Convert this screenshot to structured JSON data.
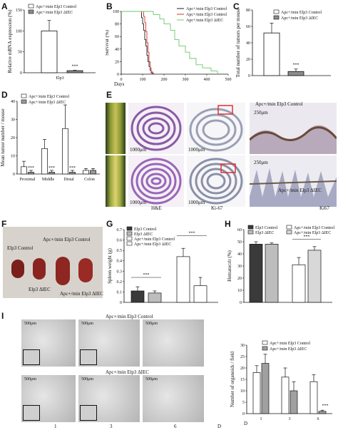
{
  "panels": {
    "A": "A",
    "B": "B",
    "C": "C",
    "D": "D",
    "E": "E",
    "F": "F",
    "G": "G",
    "H": "H",
    "I": "I"
  },
  "chart_data": [
    {
      "panel": "A",
      "type": "bar",
      "categories": [
        "Elp3"
      ],
      "series": [
        {
          "name": "Apc+/min Elp3 Control",
          "values": [
            100
          ],
          "error": [
            25
          ]
        },
        {
          "name": "Apc+/min Elp3 ΔIEC",
          "values": [
            5
          ],
          "error": [
            1
          ]
        }
      ],
      "ylabel": "Relative mRNA expression (%)",
      "ylim": [
        0,
        150
      ],
      "yticks": [
        "0",
        "50",
        "100",
        "150"
      ],
      "xtick": "Elp3",
      "annotations": [
        "***"
      ]
    },
    {
      "panel": "B",
      "type": "line",
      "xlabel": "Days",
      "ylabel": "Survival (%)",
      "xlim": [
        0,
        500
      ],
      "ylim": [
        0,
        100
      ],
      "xticks": [
        "0",
        "100",
        "200",
        "300",
        "400",
        "500"
      ],
      "yticks": [
        "0",
        "20",
        "40",
        "60",
        "80",
        "100"
      ],
      "series": [
        {
          "name": "Apc+/min Elp3 Control",
          "color": "#222222",
          "x": [
            0,
            90,
            95,
            100,
            105,
            110,
            115,
            120,
            125,
            130,
            135,
            140,
            150
          ],
          "y": [
            100,
            100,
            90,
            80,
            70,
            55,
            45,
            30,
            20,
            12,
            6,
            2,
            0
          ]
        },
        {
          "name": "Apc+/min Elp3 Control",
          "color": "#d8302c",
          "x": [
            0,
            100,
            105,
            110,
            115,
            120,
            125,
            130,
            135,
            140,
            145
          ],
          "y": [
            100,
            100,
            92,
            82,
            68,
            50,
            35,
            20,
            10,
            4,
            0
          ]
        },
        {
          "name": "Apc+/min Elp3 ΔIEC",
          "color": "#6cc86a",
          "x": [
            0,
            110,
            150,
            180,
            200,
            230,
            250,
            270,
            300,
            320,
            350,
            380,
            420,
            450
          ],
          "y": [
            100,
            100,
            95,
            88,
            80,
            70,
            55,
            45,
            35,
            25,
            15,
            10,
            5,
            0
          ]
        }
      ]
    },
    {
      "panel": "C",
      "type": "bar",
      "series": [
        {
          "name": "Apc+/min Elp3 Control",
          "values": [
            52
          ],
          "error": [
            12
          ]
        },
        {
          "name": "Apc+/min Elp3 ΔIEC",
          "values": [
            5
          ],
          "error": [
            3
          ]
        }
      ],
      "ylabel": "Total number of tumors per mouse",
      "ylim": [
        0,
        80
      ],
      "yticks": [
        "0",
        "20",
        "40",
        "60",
        "80"
      ],
      "annotations": [
        "***"
      ]
    },
    {
      "panel": "D",
      "type": "bar",
      "categories": [
        "Proximal",
        "Middle",
        "Distal",
        "Colon"
      ],
      "series": [
        {
          "name": "Apc+/min Elp3 Control",
          "values": [
            4,
            14,
            25,
            2
          ],
          "error": [
            3,
            5,
            13,
            1
          ]
        },
        {
          "name": "Apc+/min Elp3 ΔIEC",
          "values": [
            1,
            1,
            1,
            2
          ],
          "error": [
            1,
            1,
            1,
            1
          ]
        }
      ],
      "ylabel": "Mean tumor number / mouse",
      "ylim": [
        0,
        40
      ],
      "yticks": [
        "0",
        "10",
        "20",
        "30",
        "40"
      ],
      "annotations": [
        "***",
        "***",
        "***"
      ]
    },
    {
      "panel": "G",
      "type": "bar",
      "categories": [
        "",
        ""
      ],
      "series": [
        {
          "name": "Elp3 Control",
          "values": [
            0.11,
            0.44
          ],
          "error": [
            0.04,
            0.08
          ]
        },
        {
          "name": "Elp3 ΔIEC",
          "values": [
            0.09,
            0.16
          ],
          "error": [
            0.02,
            0.08
          ]
        }
      ],
      "groups_legend": [
        "Elp3 Control",
        "Elp3 ΔIEC",
        "Apc+/min Elp3 Control",
        "Apc+/min Elp3 ΔIEC"
      ],
      "group_values": [
        0.11,
        0.09,
        0.44,
        0.16
      ],
      "group_errors": [
        0.04,
        0.02,
        0.08,
        0.08
      ],
      "ylabel": "Spleen weight (g)",
      "ylim": [
        0,
        0.7
      ],
      "yticks": [
        "0",
        "0.1",
        "0.2",
        "0.3",
        "0.4",
        "0.5",
        "0.6",
        "0.7"
      ],
      "annotations": [
        "***",
        "***"
      ]
    },
    {
      "panel": "H",
      "type": "bar",
      "groups_legend": [
        "Elp3 Control",
        "Elp3 ΔIEC",
        "Apc+/min Elp3 Control",
        "Apc+/min Elp3 ΔIEC"
      ],
      "group_values": [
        48,
        48,
        31,
        43
      ],
      "group_errors": [
        2,
        1,
        6,
        3
      ],
      "ylabel": "Hematocrit (%)",
      "ylim": [
        0,
        60
      ],
      "yticks": [
        "0",
        "10",
        "20",
        "30",
        "40",
        "50",
        "60"
      ],
      "annotations": [
        "***"
      ]
    },
    {
      "panel": "I",
      "type": "bar",
      "categories": [
        "1",
        "3",
        "6"
      ],
      "series": [
        {
          "name": "Apc+/min Elp3 Control",
          "values": [
            18,
            16,
            14
          ],
          "error": [
            3,
            4,
            3
          ]
        },
        {
          "name": "Apc+/min Elp3 ΔIEC",
          "values": [
            22,
            10,
            1
          ],
          "error": [
            4,
            4,
            0.5
          ]
        }
      ],
      "xlabel": "D",
      "ylabel": "Number of organoids / field",
      "ylim": [
        0,
        30
      ],
      "yticks": [
        "0",
        "5",
        "10",
        "15",
        "20",
        "25",
        "30"
      ],
      "annotations": [
        "***"
      ]
    }
  ],
  "panel_e": {
    "scale_1000": "1000μm",
    "he_label": "H&E",
    "ki67_label": "Ki-67",
    "ki67_label_right": "Ki67",
    "scale_250": "250μm",
    "top_label": "Apc+/min Elp3 Control",
    "bottom_label": "Apc+/min Elp3 ΔIEC"
  },
  "panel_f": {
    "label_control": "Elp3 Control",
    "label_apc_control": "Apc+/min Elp3 Control",
    "label_ko": "Elp3 ΔIEC",
    "label_apc_ko": "Apc+/min Elp3 ΔIEC"
  },
  "panel_i_images": {
    "top_title": "Apc+/min Elp3 Control",
    "bottom_title": "Apc+/min Elp3 ΔIEC",
    "scale": "500μm",
    "day_labels": [
      "1",
      "3",
      "6",
      "D"
    ]
  }
}
